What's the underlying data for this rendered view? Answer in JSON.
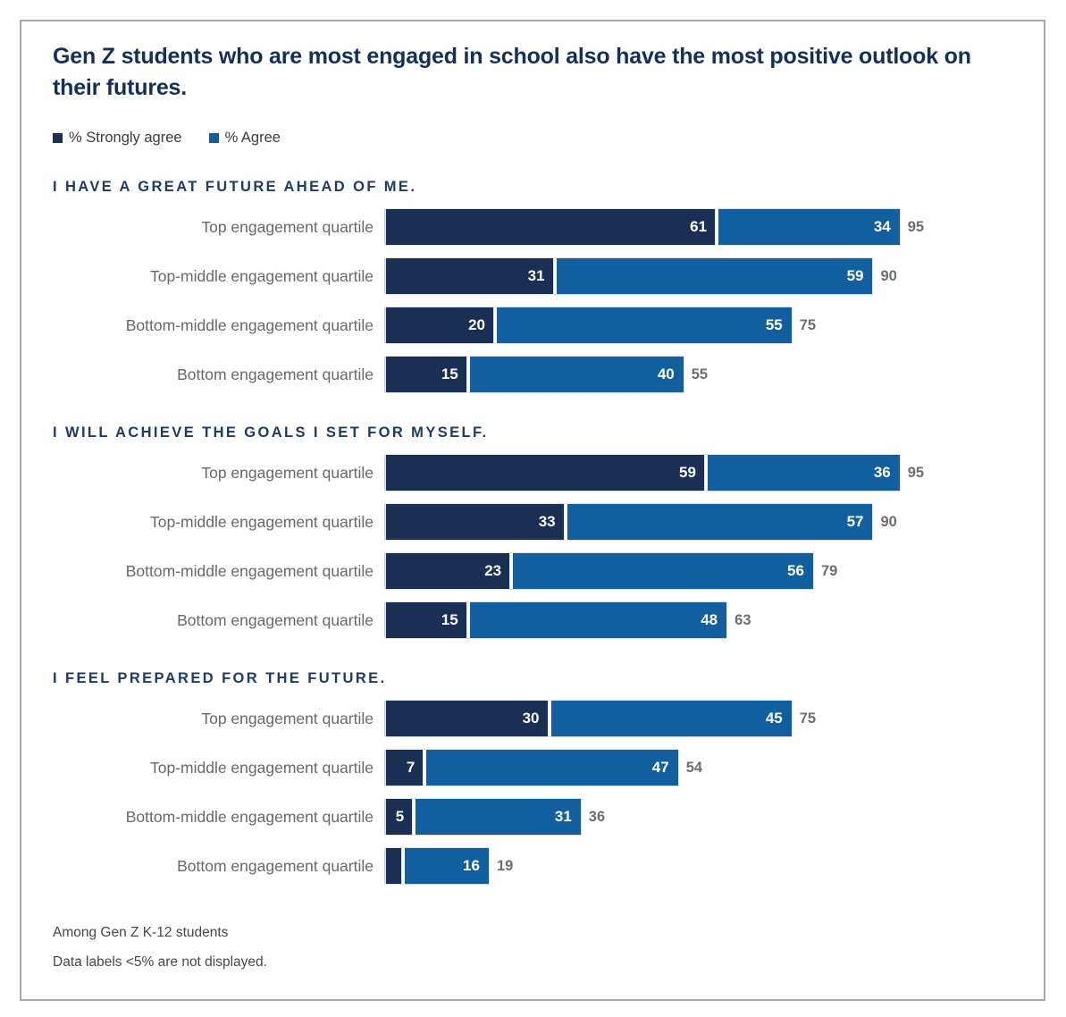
{
  "title": "Gen Z students who are most engaged in school also have the most positive outlook on their futures.",
  "legend": [
    {
      "label": "% Strongly agree",
      "color": "#192F54"
    },
    {
      "label": "% Agree",
      "color": "#115F9E"
    }
  ],
  "colors": {
    "strongly_agree": "#192F54",
    "agree": "#115F9E",
    "title_navy": "#13305a",
    "heading_navy": "#1d3c66",
    "category_gray": "#696969",
    "total_gray": "#6e6e6e",
    "axis_line": "#c8c8c8",
    "card_border": "#a8a8a8"
  },
  "footnotes": [
    "Among Gen Z K-12 students",
    "Data labels <5% are not displayed."
  ],
  "chart_data": {
    "type": "bar",
    "orientation": "horizontal",
    "stacked": true,
    "xlim": [
      0,
      100
    ],
    "grid": false,
    "legend_position": "top-left",
    "series_names": [
      "% Strongly agree",
      "% Agree"
    ],
    "min_label_threshold": 5,
    "sections": [
      {
        "heading": "I HAVE A GREAT FUTURE AHEAD OF ME.",
        "rows": [
          {
            "category": "Top engagement quartile",
            "strongly_agree": 61,
            "agree": 34,
            "total": 95
          },
          {
            "category": "Top-middle engagement quartile",
            "strongly_agree": 31,
            "agree": 59,
            "total": 90
          },
          {
            "category": "Bottom-middle engagement quartile",
            "strongly_agree": 20,
            "agree": 55,
            "total": 75
          },
          {
            "category": "Bottom engagement quartile",
            "strongly_agree": 15,
            "agree": 40,
            "total": 55
          }
        ]
      },
      {
        "heading": "I WILL ACHIEVE THE GOALS I SET FOR MYSELF.",
        "rows": [
          {
            "category": "Top engagement quartile",
            "strongly_agree": 59,
            "agree": 36,
            "total": 95
          },
          {
            "category": "Top-middle engagement quartile",
            "strongly_agree": 33,
            "agree": 57,
            "total": 90
          },
          {
            "category": "Bottom-middle engagement quartile",
            "strongly_agree": 23,
            "agree": 56,
            "total": 79
          },
          {
            "category": "Bottom engagement quartile",
            "strongly_agree": 15,
            "agree": 48,
            "total": 63
          }
        ]
      },
      {
        "heading": "I FEEL PREPARED FOR THE FUTURE.",
        "rows": [
          {
            "category": "Top engagement quartile",
            "strongly_agree": 30,
            "agree": 45,
            "total": 75
          },
          {
            "category": "Top-middle engagement quartile",
            "strongly_agree": 7,
            "agree": 47,
            "total": 54
          },
          {
            "category": "Bottom-middle engagement quartile",
            "strongly_agree": 5,
            "agree": 31,
            "total": 36
          },
          {
            "category": "Bottom engagement quartile",
            "strongly_agree": 3,
            "agree": 16,
            "total": 19
          }
        ]
      }
    ]
  }
}
